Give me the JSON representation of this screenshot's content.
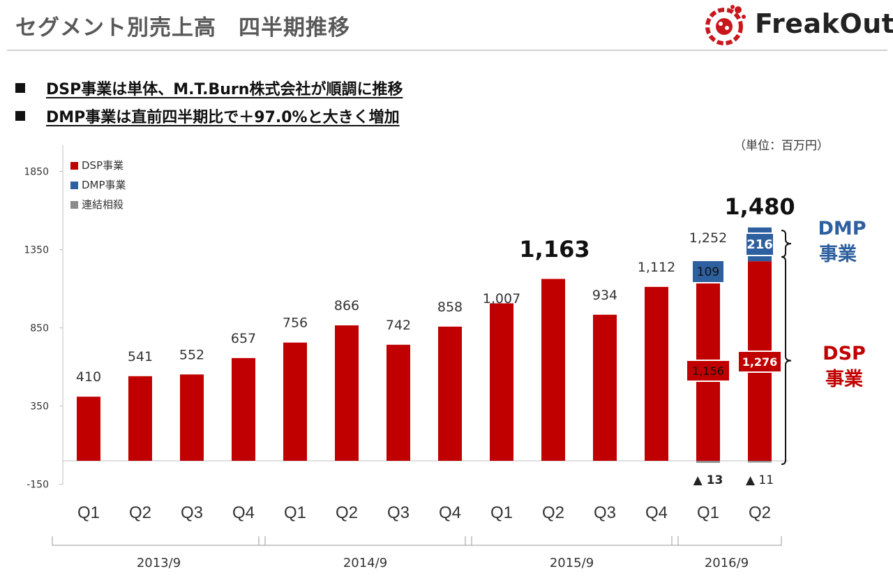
{
  "header": {
    "title": "セグメント別売上高　四半期推移",
    "logo_text": "FreakOut"
  },
  "bullets": [
    "DSP事業は単体、M.T.Burn株式会社が順調に推移",
    "DMP事業は直前四半期比で＋97.0%と大きく増加"
  ],
  "unit_label": "（単位：百万円）",
  "colors": {
    "dsp": "#c00000",
    "dmp": "#2e5f9e",
    "consol": "#8c8c8c",
    "brand": "#c8171d"
  },
  "chart_data": {
    "type": "bar",
    "stacked": true,
    "categories": [
      "Q1",
      "Q2",
      "Q3",
      "Q4",
      "Q1",
      "Q2",
      "Q3",
      "Q4",
      "Q1",
      "Q2",
      "Q3",
      "Q4",
      "Q1",
      "Q2"
    ],
    "fiscal_years": [
      {
        "label": "2013/9",
        "from": 0,
        "to": 3
      },
      {
        "label": "2014/9",
        "from": 4,
        "to": 7
      },
      {
        "label": "2015/9",
        "from": 8,
        "to": 11
      },
      {
        "label": "2016/9",
        "from": 12,
        "to": 13
      }
    ],
    "series": [
      {
        "name": "DSP事業",
        "values": [
          410,
          541,
          552,
          657,
          756,
          866,
          742,
          858,
          1007,
          1163,
          934,
          1112,
          1156,
          1276
        ]
      },
      {
        "name": "DMP事業",
        "values": [
          0,
          0,
          0,
          0,
          0,
          0,
          0,
          0,
          0,
          0,
          0,
          0,
          109,
          216
        ]
      },
      {
        "name": "連結相殺",
        "values": [
          0,
          0,
          0,
          0,
          0,
          0,
          0,
          0,
          0,
          0,
          0,
          0,
          -13,
          -11
        ]
      }
    ],
    "totals": [
      410,
      541,
      552,
      657,
      756,
      866,
      742,
      858,
      1007,
      1163,
      934,
      1112,
      1252,
      1480
    ],
    "total_labels": [
      "410",
      "541",
      "552",
      "657",
      "756",
      "866",
      "742",
      "858",
      "1,007",
      "1,163",
      "934",
      "1,112",
      "1,252",
      "1,480"
    ],
    "emphasized_totals": [
      9,
      13
    ],
    "dsp_labels": {
      "12": "1,156",
      "13": "1,276"
    },
    "dmp_labels": {
      "12": "109",
      "13": "216"
    },
    "consol_labels": {
      "12": "▲ 13",
      "13": "▲ 11"
    },
    "yticks": [
      -150,
      350,
      850,
      1350,
      1850
    ],
    "ylim": [
      -150,
      2000
    ],
    "legend_position": "top-left",
    "side_labels": {
      "dmp": [
        "DMP",
        "事業"
      ],
      "dsp": [
        "DSP",
        "事業"
      ]
    }
  }
}
